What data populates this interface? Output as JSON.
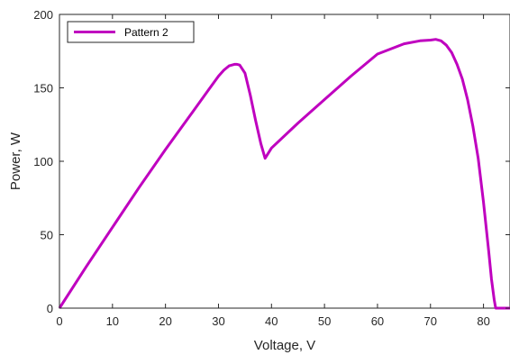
{
  "chart_data": {
    "type": "line",
    "title": "",
    "xlabel": "Voltage, V",
    "ylabel": "Power, W",
    "xlim": [
      0,
      85
    ],
    "ylim": [
      0,
      200
    ],
    "xticks": [
      0,
      10,
      20,
      30,
      40,
      50,
      60,
      70,
      80
    ],
    "yticks": [
      0,
      50,
      100,
      150,
      200
    ],
    "grid": false,
    "legend_position": "top-left",
    "series": [
      {
        "name": "Pattern 2",
        "color": "#bf00bf",
        "x": [
          0,
          5,
          10,
          15,
          20,
          25,
          28,
          30,
          31,
          32,
          33,
          33.5,
          34,
          35,
          36,
          37,
          38,
          38.8,
          40,
          45,
          50,
          55,
          60,
          65,
          68,
          70,
          71,
          72,
          73,
          74,
          75,
          76,
          77,
          78,
          79,
          80,
          81,
          81.5,
          82,
          82.3,
          83,
          84,
          85
        ],
        "y": [
          0,
          28,
          55,
          82,
          108,
          133,
          148,
          158,
          162,
          165,
          166,
          166,
          165.5,
          160,
          145,
          128,
          112,
          102,
          109,
          126,
          142,
          158,
          173,
          180,
          182,
          182.5,
          183,
          182,
          179,
          174,
          166,
          156,
          142,
          124,
          102,
          72,
          38,
          20,
          6,
          0,
          0,
          0,
          0
        ]
      }
    ]
  }
}
